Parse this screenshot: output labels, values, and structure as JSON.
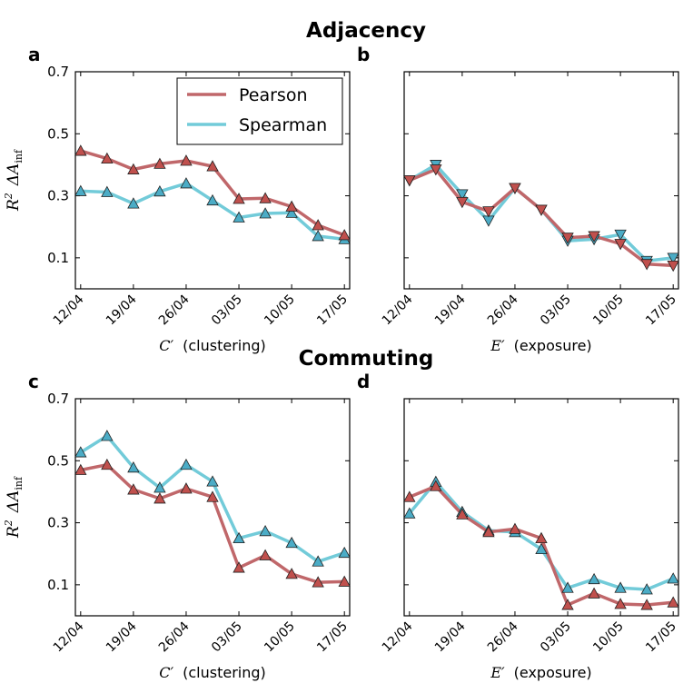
{
  "titles": {
    "top": "Adjacency",
    "bottom": "Commuting"
  },
  "legend": {
    "pearson": "Pearson",
    "spearman": "Spearman"
  },
  "colors": {
    "pearson": "#c0676a",
    "spearman": "#72cbd9",
    "pearson_marker": "#c0504d",
    "spearman_marker": "#4bacc6"
  },
  "chart_data": [
    {
      "type": "line",
      "panel": "a",
      "group": "Adjacency",
      "ylabel_r": "R",
      "ylabel_r_sup": "2",
      "ylabel_delta": "ΔA",
      "ylabel_delta_sub": "inf",
      "xlabel_var": "C′",
      "xlabel_text": "(clustering)",
      "marker": "up",
      "ylim": [
        0.0,
        0.7
      ],
      "yticks": [
        "0.1",
        "0.3",
        "0.5",
        "0.7"
      ],
      "ytick_values": [
        0.1,
        0.3,
        0.5,
        0.7
      ],
      "xticks": [
        "12/04",
        "19/04",
        "26/04",
        "03/05",
        "10/05",
        "17/05"
      ],
      "x": [
        0,
        1,
        2,
        3,
        4,
        5,
        6,
        7,
        8,
        9,
        10
      ],
      "xlim": [
        -0.2,
        10.2
      ],
      "series": [
        {
          "name": "Pearson",
          "values": [
            0.445,
            0.42,
            0.385,
            0.403,
            0.413,
            0.395,
            0.29,
            0.292,
            0.265,
            0.205,
            0.173
          ]
        },
        {
          "name": "Spearman",
          "values": [
            0.315,
            0.312,
            0.275,
            0.314,
            0.34,
            0.285,
            0.23,
            0.243,
            0.245,
            0.17,
            0.16
          ]
        }
      ]
    },
    {
      "type": "line",
      "panel": "b",
      "group": "Adjacency",
      "xlabel_var": "E′",
      "xlabel_text": "(exposure)",
      "marker": "down",
      "ylim": [
        0.0,
        0.7
      ],
      "yticks": [],
      "ytick_values": [
        0.1,
        0.3,
        0.5,
        0.7
      ],
      "xticks": [
        "12/04",
        "19/04",
        "26/04",
        "03/05",
        "10/05",
        "17/05"
      ],
      "x": [
        0,
        1,
        2,
        3,
        4,
        5,
        6,
        7,
        8,
        9,
        10
      ],
      "xlim": [
        -0.2,
        10.2
      ],
      "series": [
        {
          "name": "Pearson",
          "values": [
            0.35,
            0.385,
            0.28,
            0.25,
            0.325,
            0.255,
            0.165,
            0.17,
            0.145,
            0.08,
            0.075
          ]
        },
        {
          "name": "Spearman",
          "values": [
            0.35,
            0.4,
            0.305,
            0.22,
            0.325,
            0.255,
            0.155,
            0.16,
            0.175,
            0.09,
            0.1
          ]
        }
      ]
    },
    {
      "type": "line",
      "panel": "c",
      "group": "Commuting",
      "ylabel_r": "R",
      "ylabel_r_sup": "2",
      "ylabel_delta": "ΔA",
      "ylabel_delta_sub": "inf",
      "xlabel_var": "C′",
      "xlabel_text": "(clustering)",
      "marker": "up",
      "ylim": [
        0.0,
        0.7
      ],
      "yticks": [
        "0.1",
        "0.3",
        "0.5",
        "0.7"
      ],
      "ytick_values": [
        0.1,
        0.3,
        0.5,
        0.7
      ],
      "xticks": [
        "12/04",
        "19/04",
        "26/04",
        "03/05",
        "10/05",
        "17/05"
      ],
      "x": [
        0,
        1,
        2,
        3,
        4,
        5,
        6,
        7,
        8,
        9,
        10
      ],
      "xlim": [
        -0.2,
        10.2
      ],
      "series": [
        {
          "name": "Pearson",
          "values": [
            0.47,
            0.487,
            0.407,
            0.378,
            0.41,
            0.383,
            0.155,
            0.195,
            0.135,
            0.108,
            0.11
          ]
        },
        {
          "name": "Spearman",
          "values": [
            0.527,
            0.58,
            0.478,
            0.413,
            0.487,
            0.433,
            0.25,
            0.273,
            0.235,
            0.175,
            0.203
          ]
        }
      ]
    },
    {
      "type": "line",
      "panel": "d",
      "group": "Commuting",
      "xlabel_var": "E′",
      "xlabel_text": "(exposure)",
      "marker": "up",
      "ylim": [
        0.0,
        0.7
      ],
      "yticks": [],
      "ytick_values": [
        0.1,
        0.3,
        0.5,
        0.7
      ],
      "xticks": [
        "12/04",
        "19/04",
        "26/04",
        "03/05",
        "10/05",
        "17/05"
      ],
      "x": [
        0,
        1,
        2,
        3,
        4,
        5,
        6,
        7,
        8,
        9,
        10
      ],
      "xlim": [
        -0.2,
        10.2
      ],
      "series": [
        {
          "name": "Pearson",
          "values": [
            0.383,
            0.418,
            0.327,
            0.27,
            0.28,
            0.25,
            0.035,
            0.072,
            0.038,
            0.035,
            0.043
          ]
        },
        {
          "name": "Spearman",
          "values": [
            0.33,
            0.432,
            0.335,
            0.275,
            0.27,
            0.215,
            0.09,
            0.118,
            0.09,
            0.085,
            0.12
          ]
        }
      ]
    }
  ]
}
